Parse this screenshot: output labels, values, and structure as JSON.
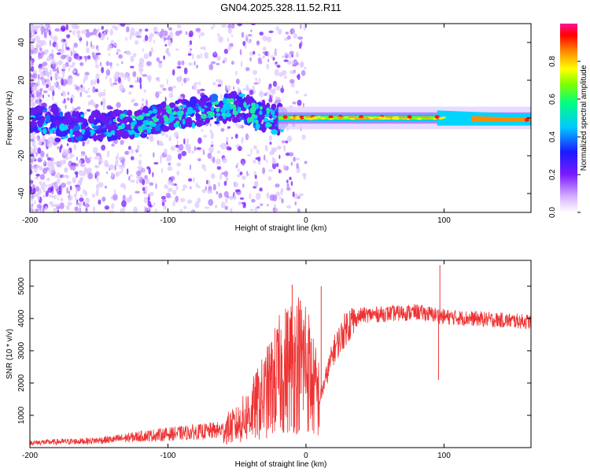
{
  "title": "GN04.2025.328.11.52.R11",
  "chart_data": [
    {
      "type": "heatmap",
      "title": "GN04.2025.328.11.52.R11",
      "xlabel": "Height of straight line (km)",
      "ylabel": "Frequency (Hz)",
      "xlim": [
        -200,
        163
      ],
      "ylim": [
        -50,
        50
      ],
      "x_ticks": [
        -200,
        -100,
        0,
        100
      ],
      "y_ticks": [
        -40,
        -20,
        0,
        20,
        40
      ],
      "y_tick_labels": [
        "-40",
        "-20",
        "0",
        "20",
        "40"
      ],
      "x_tick_labels": [
        "-200",
        "-100",
        "0",
        "100"
      ],
      "colorbar": {
        "label": "Normalized spectral amplitude",
        "range": [
          0,
          1
        ],
        "ticks": [
          0,
          0.2,
          0.4,
          0.6,
          0.8
        ],
        "tick_labels": [
          "0.0",
          "0.2",
          "0.4",
          "0.6",
          "0.8"
        ],
        "colormap": [
          "#ffffff",
          "#d9b3ff",
          "#8a2be2",
          "#2020ff",
          "#00c8ff",
          "#00ff80",
          "#80ff00",
          "#ffff00",
          "#ff8000",
          "#ff0000",
          "#ff1493"
        ]
      },
      "ridge": [
        {
          "x": -180,
          "y": -5
        },
        {
          "x": -150,
          "y": -4
        },
        {
          "x": -120,
          "y": -3
        },
        {
          "x": -95,
          "y": 2
        },
        {
          "x": -70,
          "y": 4
        },
        {
          "x": -50,
          "y": 6
        },
        {
          "x": -35,
          "y": 2
        },
        {
          "x": -20,
          "y": -1
        },
        {
          "x": -5,
          "y": 0
        },
        {
          "x": 10,
          "y": 0
        },
        {
          "x": 50,
          "y": 0
        },
        {
          "x": 95,
          "y": 0
        },
        {
          "x": 130,
          "y": -1
        },
        {
          "x": 160,
          "y": -1
        }
      ]
    },
    {
      "type": "line",
      "xlabel": "Height of straight line (km)",
      "ylabel": "SNR (10 * v/v)",
      "xlim": [
        -200,
        163
      ],
      "ylim": [
        0,
        5800
      ],
      "x_ticks": [
        -200,
        -100,
        0,
        100
      ],
      "y_ticks": [
        1000,
        2000,
        3000,
        4000,
        5000
      ],
      "x_tick_labels": [
        "-200",
        "-100",
        "0",
        "100"
      ],
      "y_tick_labels": [
        "1000",
        "2000",
        "3000",
        "4000",
        "5000"
      ],
      "line_color": "#ee3333",
      "series": [
        {
          "name": "SNR",
          "x": [
            -200,
            -180,
            -160,
            -140,
            -120,
            -100,
            -80,
            -60,
            -50,
            -40,
            -30,
            -20,
            -10,
            0,
            5,
            10,
            20,
            30,
            40,
            60,
            80,
            95,
            100,
            120,
            140,
            163
          ],
          "y": [
            150,
            180,
            200,
            250,
            350,
            420,
            480,
            550,
            700,
            1100,
            1600,
            2200,
            2600,
            2700,
            1900,
            1500,
            3000,
            3800,
            4100,
            4150,
            4200,
            4100,
            4050,
            4000,
            3950,
            3900
          ]
        }
      ],
      "spikes": [
        {
          "x": -10,
          "y": 5050
        },
        {
          "x": 11,
          "y": 5000
        },
        {
          "x": 97,
          "y": 5650
        },
        {
          "x": 96,
          "y": 2100
        }
      ]
    }
  ]
}
